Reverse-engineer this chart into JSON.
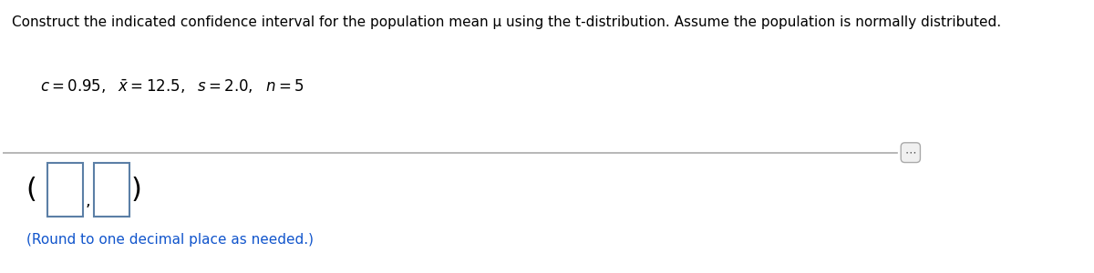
{
  "title_text": "Construct the indicated confidence interval for the population mean μ using the t-distribution. Assume the population is normally distributed.",
  "answer_hint": "(Round to one decimal place as needed.)",
  "title_fontsize": 11,
  "params_fontsize": 12,
  "hint_fontsize": 11,
  "bg_color": "#ffffff",
  "title_color": "#000000",
  "hint_color": "#1155cc",
  "box_color": "#5b7fa6",
  "separator_color": "#aaaaaa",
  "dots_bg": "#f0f0f0",
  "dots_edge": "#aaaaaa"
}
